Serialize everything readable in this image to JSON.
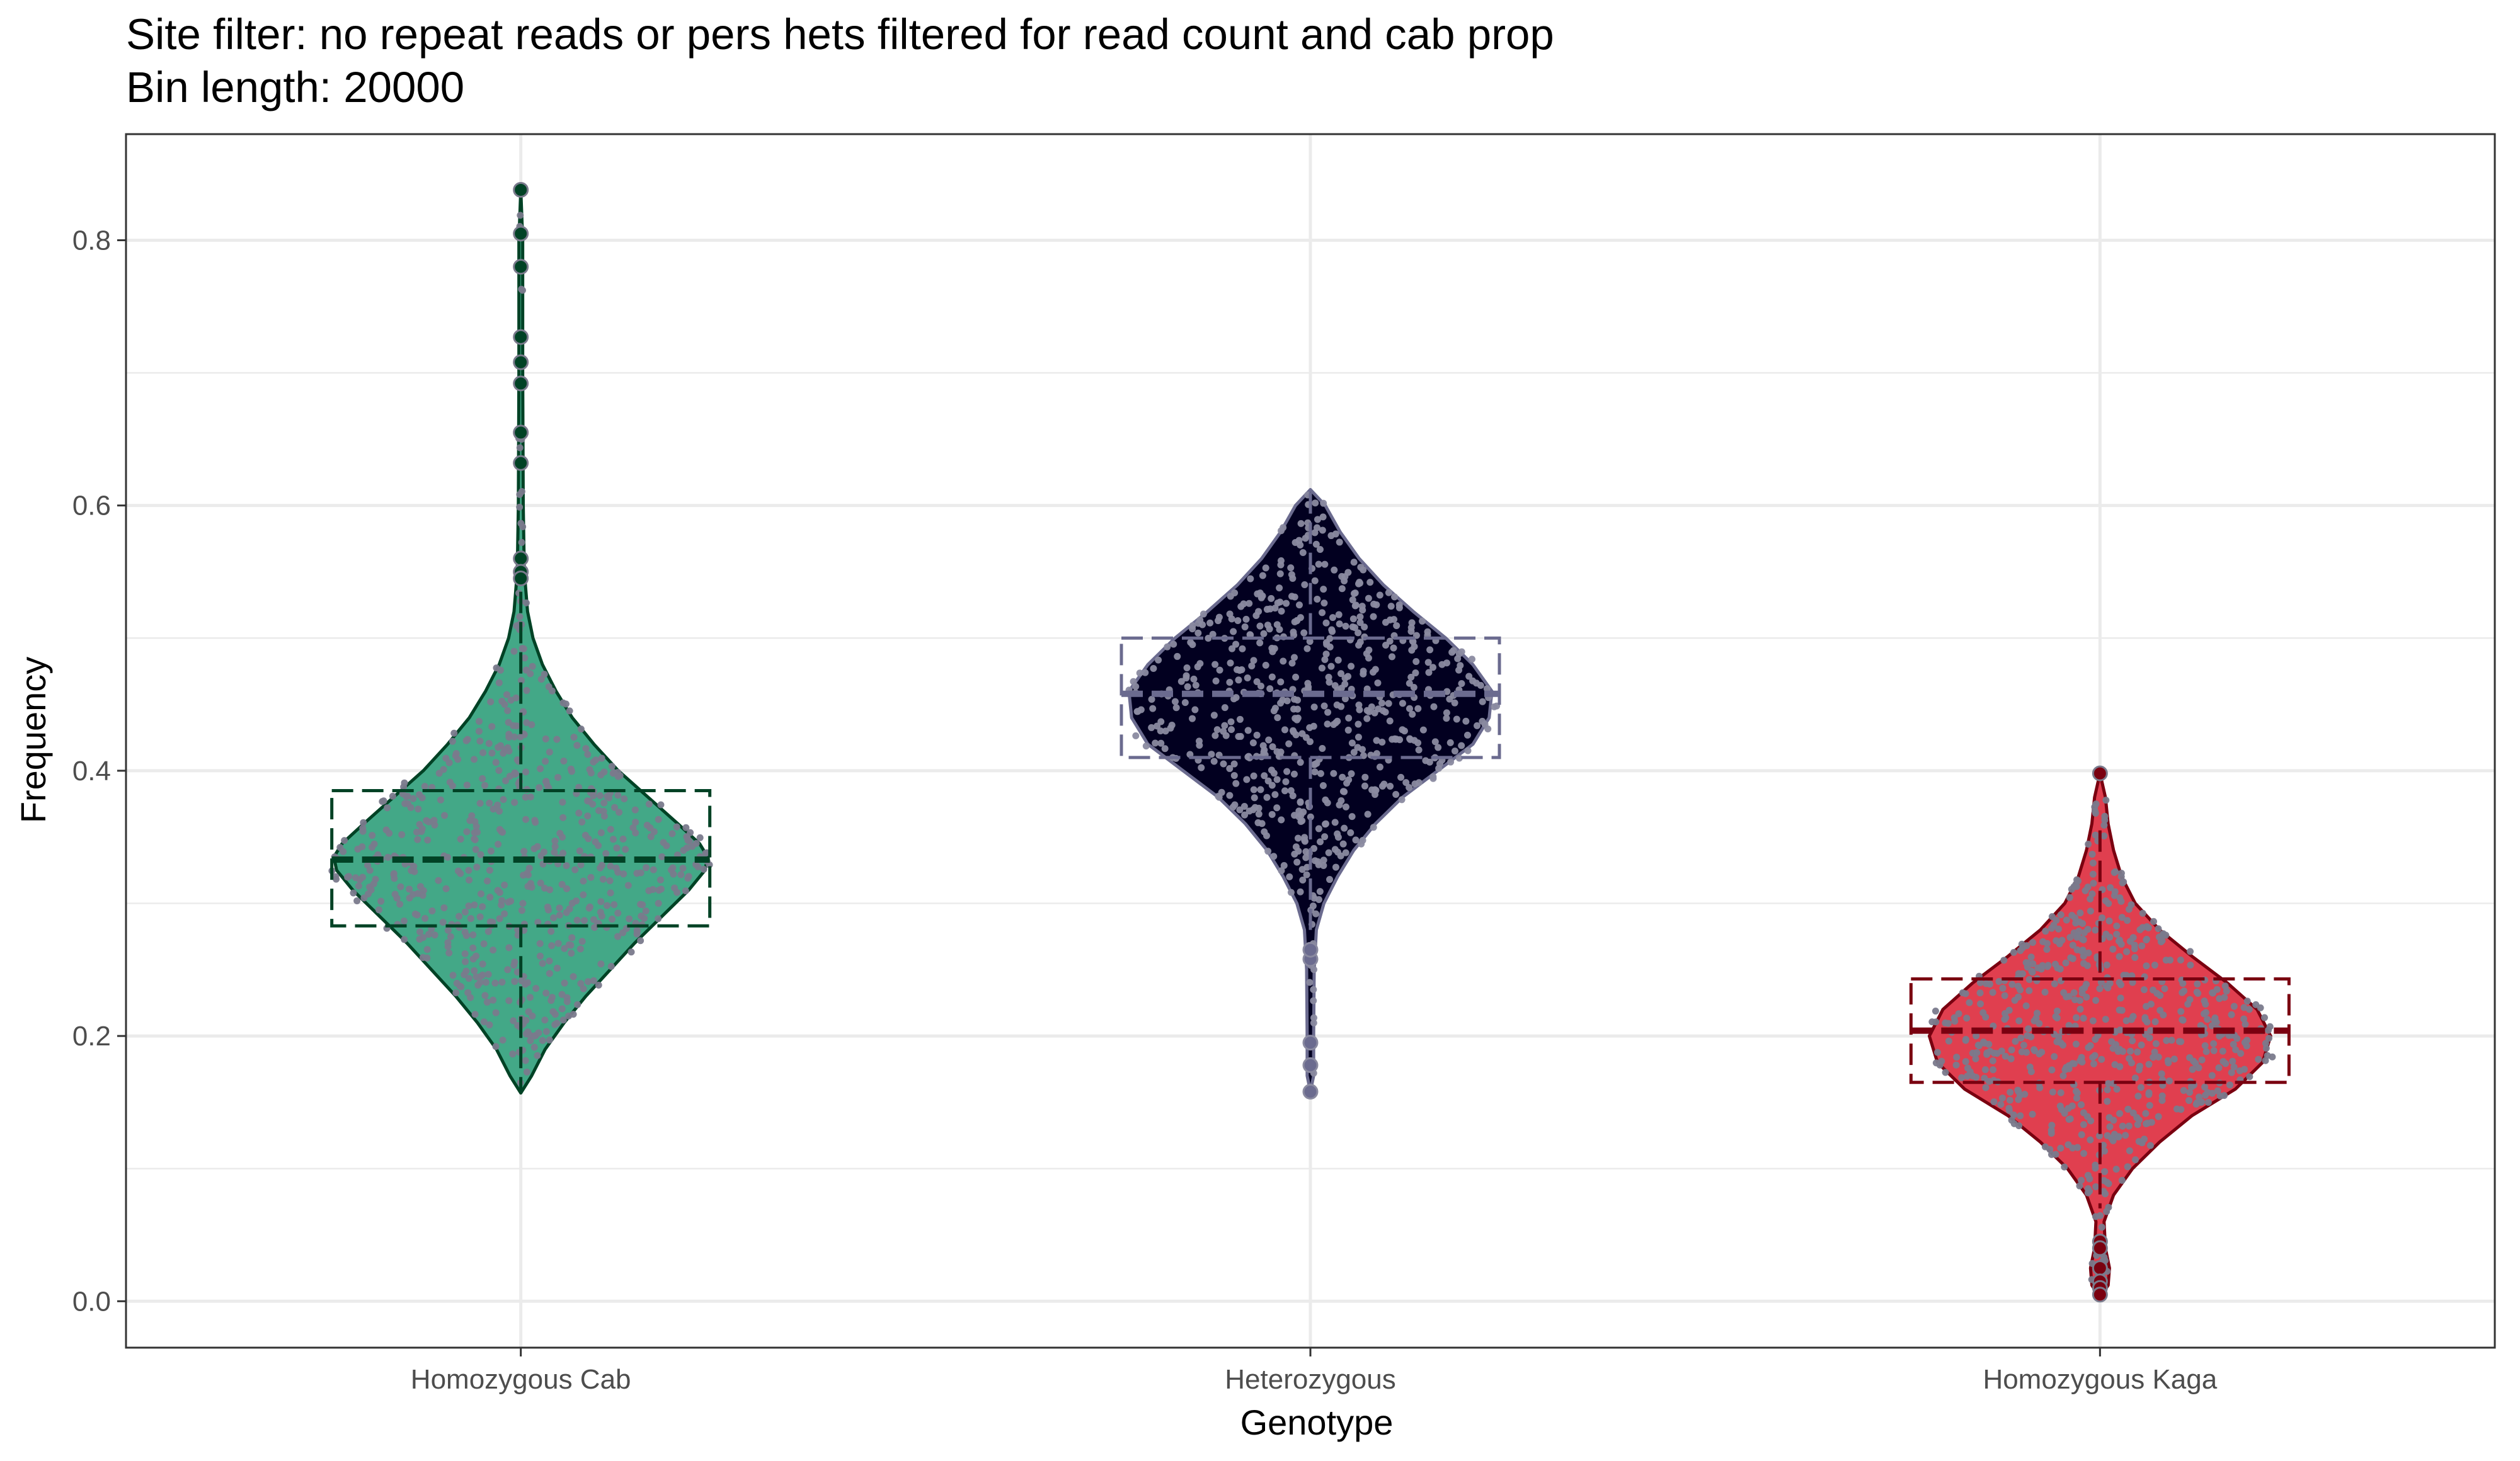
{
  "chart_data": {
    "type": "violin",
    "title": "Site filter: no repeat reads or pers hets filtered for read count and cab prop",
    "subtitle": "Bin length: 20000",
    "xlabel": "Genotype",
    "ylabel": "Frequency",
    "ylim": [
      -0.035,
      0.88
    ],
    "yticks": [
      0.0,
      0.2,
      0.4,
      0.6,
      0.8
    ],
    "ytick_labels": [
      "0.0",
      "0.2",
      "0.4",
      "0.6",
      "0.8"
    ],
    "categories": [
      "Homozygous Cab",
      "Heterozygous",
      "Homozygous Kaga"
    ],
    "grid": true,
    "legend": "none",
    "series": [
      {
        "category": "Homozygous Cab",
        "fill": "#43a887",
        "line": "#004225",
        "point_color": "#7a7a8c",
        "box": {
          "q1": 0.283,
          "median": 0.333,
          "q3": 0.385,
          "whisker_low": 0.157,
          "whisker_high": 0.535
        },
        "range": [
          0.157,
          0.838
        ],
        "half_width": [
          [
            0.157,
            0.0
          ],
          [
            0.17,
            0.04
          ],
          [
            0.19,
            0.09
          ],
          [
            0.21,
            0.16
          ],
          [
            0.23,
            0.24
          ],
          [
            0.25,
            0.33
          ],
          [
            0.27,
            0.42
          ],
          [
            0.29,
            0.52
          ],
          [
            0.31,
            0.62
          ],
          [
            0.325,
            0.68
          ],
          [
            0.335,
            0.69
          ],
          [
            0.345,
            0.66
          ],
          [
            0.36,
            0.58
          ],
          [
            0.38,
            0.47
          ],
          [
            0.4,
            0.36
          ],
          [
            0.42,
            0.27
          ],
          [
            0.44,
            0.19
          ],
          [
            0.46,
            0.13
          ],
          [
            0.48,
            0.08
          ],
          [
            0.5,
            0.045
          ],
          [
            0.52,
            0.025
          ],
          [
            0.55,
            0.013
          ],
          [
            0.6,
            0.009
          ],
          [
            0.7,
            0.007
          ],
          [
            0.8,
            0.007
          ],
          [
            0.838,
            0.0
          ]
        ],
        "outliers": [
          0.838,
          0.805,
          0.78,
          0.727,
          0.708,
          0.692,
          0.655,
          0.632,
          0.56,
          0.55,
          0.545
        ]
      },
      {
        "category": "Heterozygous",
        "fill": "#020020",
        "line": "#6b6b8f",
        "point_color": "#8a8aa0",
        "box": {
          "q1": 0.41,
          "median": 0.458,
          "q3": 0.5,
          "whisker_low": 0.28,
          "whisker_high": 0.61
        },
        "range": [
          0.158,
          0.612
        ],
        "half_width": [
          [
            0.158,
            0.0
          ],
          [
            0.17,
            0.012
          ],
          [
            0.2,
            0.012
          ],
          [
            0.25,
            0.014
          ],
          [
            0.28,
            0.022
          ],
          [
            0.3,
            0.05
          ],
          [
            0.32,
            0.1
          ],
          [
            0.34,
            0.16
          ],
          [
            0.36,
            0.24
          ],
          [
            0.38,
            0.34
          ],
          [
            0.4,
            0.47
          ],
          [
            0.42,
            0.6
          ],
          [
            0.44,
            0.66
          ],
          [
            0.46,
            0.67
          ],
          [
            0.48,
            0.6
          ],
          [
            0.5,
            0.5
          ],
          [
            0.52,
            0.38
          ],
          [
            0.54,
            0.27
          ],
          [
            0.56,
            0.18
          ],
          [
            0.58,
            0.11
          ],
          [
            0.6,
            0.055
          ],
          [
            0.612,
            0.0
          ]
        ],
        "outliers": [
          0.158,
          0.178,
          0.195,
          0.258,
          0.265
        ]
      },
      {
        "category": "Homozygous Kaga",
        "fill": "#e03f4f",
        "line": "#7a0010",
        "point_color": "#7a7a8c",
        "box": {
          "q1": 0.165,
          "median": 0.204,
          "q3": 0.243,
          "whisker_low": 0.07,
          "whisker_high": 0.355
        },
        "range": [
          0.003,
          0.398
        ],
        "half_width": [
          [
            0.003,
            0.0
          ],
          [
            0.012,
            0.03
          ],
          [
            0.025,
            0.035
          ],
          [
            0.04,
            0.02
          ],
          [
            0.06,
            0.015
          ],
          [
            0.08,
            0.05
          ],
          [
            0.1,
            0.12
          ],
          [
            0.12,
            0.22
          ],
          [
            0.14,
            0.34
          ],
          [
            0.16,
            0.5
          ],
          [
            0.18,
            0.6
          ],
          [
            0.2,
            0.63
          ],
          [
            0.22,
            0.58
          ],
          [
            0.24,
            0.47
          ],
          [
            0.26,
            0.34
          ],
          [
            0.28,
            0.22
          ],
          [
            0.3,
            0.13
          ],
          [
            0.32,
            0.08
          ],
          [
            0.34,
            0.05
          ],
          [
            0.36,
            0.03
          ],
          [
            0.38,
            0.02
          ],
          [
            0.398,
            0.0
          ]
        ],
        "outliers": [
          0.398,
          0.045,
          0.04,
          0.025,
          0.015,
          0.01,
          0.005
        ]
      }
    ]
  }
}
